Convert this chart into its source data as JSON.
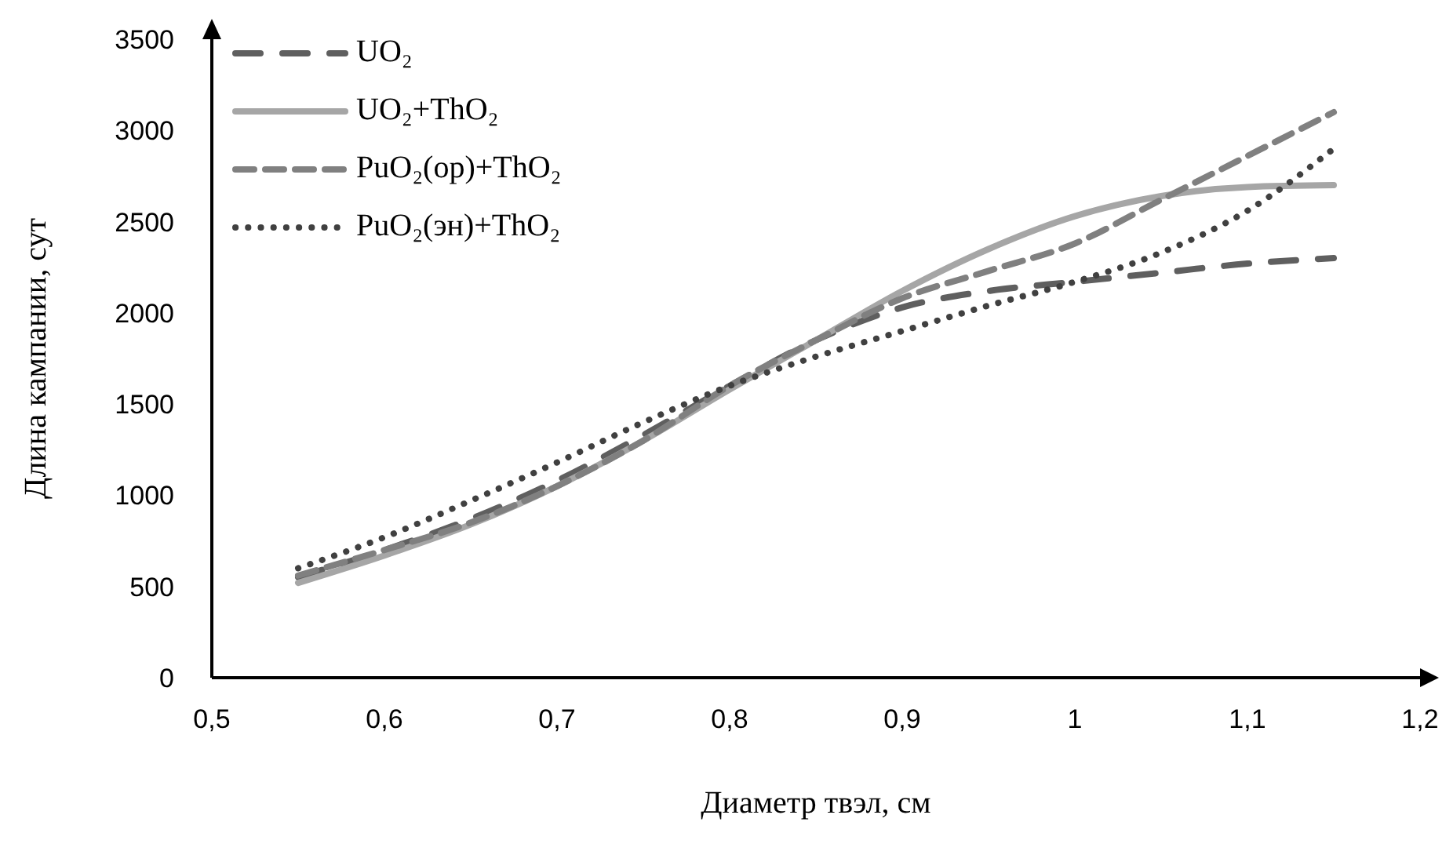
{
  "chart_data": {
    "type": "line",
    "xlabel": "Диаметр твэл, см",
    "ylabel": "Длина кампании, сут",
    "x": [
      0.55,
      0.6,
      0.65,
      0.7,
      0.75,
      0.8,
      0.85,
      0.9,
      0.95,
      1.0,
      1.05,
      1.1,
      1.15
    ],
    "series": [
      {
        "name": "UO₂",
        "color": "#5f5f5f",
        "line_style": "dashed",
        "values": [
          550,
          700,
          870,
          1080,
          1330,
          1600,
          1850,
          2030,
          2120,
          2170,
          2220,
          2270,
          2300
        ]
      },
      {
        "name": "UO₂+ThO₂",
        "color": "#a6a6a6",
        "line_style": "solid",
        "values": [
          520,
          670,
          840,
          1050,
          1300,
          1580,
          1850,
          2120,
          2350,
          2530,
          2640,
          2690,
          2700
        ]
      },
      {
        "name": "PuO₂(ор)+ThO₂",
        "color": "#808080",
        "line_style": "dashed",
        "values": [
          560,
          700,
          850,
          1050,
          1300,
          1600,
          1850,
          2080,
          2230,
          2380,
          2620,
          2860,
          3100
        ]
      },
      {
        "name": "PuO₂(эн)+ThO₂",
        "color": "#404040",
        "line_style": "dotted",
        "values": [
          600,
          770,
          970,
          1180,
          1400,
          1600,
          1760,
          1900,
          2040,
          2170,
          2330,
          2560,
          2900
        ]
      }
    ],
    "xlim": [
      0.5,
      1.2
    ],
    "xticks": [
      {
        "value": 0.5,
        "label": "0,5"
      },
      {
        "value": 0.6,
        "label": "0,6"
      },
      {
        "value": 0.7,
        "label": "0,7"
      },
      {
        "value": 0.8,
        "label": "0,8"
      },
      {
        "value": 0.9,
        "label": "0,9"
      },
      {
        "value": 1,
        "label": "1"
      },
      {
        "value": 1.1,
        "label": "1,1"
      },
      {
        "value": 1.2,
        "label": "1,2"
      }
    ],
    "ylim": [
      0,
      3500
    ],
    "yticks": [
      0,
      500,
      1000,
      1500,
      2000,
      2500,
      3000,
      3500
    ],
    "grid": false,
    "legend": "top left",
    "marker": "none"
  }
}
